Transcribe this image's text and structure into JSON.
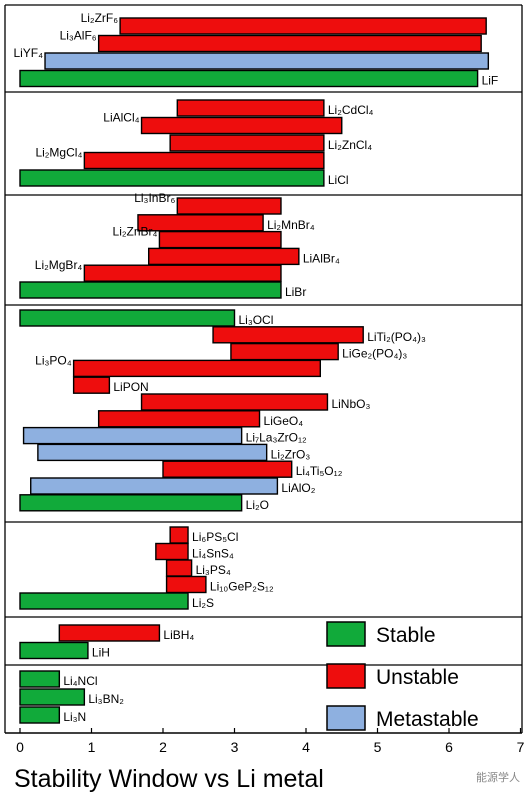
{
  "chart_data": {
    "type": "bar",
    "orientation": "horizontal-range",
    "title": "Stability Window vs Li metal",
    "xlabel": "",
    "ylabel": "",
    "xlim": [
      0,
      7
    ],
    "xticks": [
      0,
      1,
      2,
      3,
      4,
      5,
      6,
      7
    ],
    "grid": false,
    "legend_position": "bottom-right",
    "colors": {
      "Stable": "#11aa3a",
      "Unstable": "#ee0d0d",
      "Metastable": "#8eb0e0"
    },
    "legend": [
      "Stable",
      "Unstable",
      "Metastable"
    ],
    "groups": [
      {
        "materials": [
          {
            "name": "Li2ZrF6",
            "label": "Li₂ZrF₆",
            "start": 1.4,
            "end": 6.52,
            "status": "Unstable",
            "label_side": "left"
          },
          {
            "name": "Li3AlF6",
            "label": "Li₃AlF₆",
            "start": 1.1,
            "end": 6.45,
            "status": "Unstable",
            "label_side": "left"
          },
          {
            "name": "LiYF4",
            "label": "LiYF₄",
            "start": 0.35,
            "end": 6.55,
            "status": "Metastable",
            "label_side": "left"
          },
          {
            "name": "LiF",
            "label": "LiF",
            "start": 0,
            "end": 6.4,
            "status": "Stable",
            "label_side": "right"
          }
        ]
      },
      {
        "materials": [
          {
            "name": "Li2CdCl4",
            "label": "Li₂CdCl₄",
            "start": 2.2,
            "end": 4.25,
            "status": "Unstable",
            "label_side": "right"
          },
          {
            "name": "LiAlCl4",
            "label": "LiAlCl₄",
            "start": 1.7,
            "end": 4.5,
            "status": "Unstable",
            "label_side": "left"
          },
          {
            "name": "Li2ZnCl4",
            "label": "Li₂ZnCl₄",
            "start": 2.1,
            "end": 4.25,
            "status": "Unstable",
            "label_side": "right"
          },
          {
            "name": "Li2MgCl4",
            "label": "Li₂MgCl₄",
            "start": 0.9,
            "end": 4.25,
            "status": "Unstable",
            "label_side": "left"
          },
          {
            "name": "LiCl",
            "label": "LiCl",
            "start": 0,
            "end": 4.25,
            "status": "Stable",
            "label_side": "right"
          }
        ]
      },
      {
        "materials": [
          {
            "name": "Li3InBr6",
            "label": "Li₃InBr₆",
            "start": 2.2,
            "end": 3.65,
            "status": "Unstable",
            "label_side": "left"
          },
          {
            "name": "Li2MnBr4",
            "label": "Li₂MnBr₄",
            "start": 1.65,
            "end": 3.4,
            "status": "Unstable",
            "label_side": "right"
          },
          {
            "name": "Li2ZnBr4",
            "label": "Li₂ZnBr₄",
            "start": 1.95,
            "end": 3.65,
            "status": "Unstable",
            "label_side": "left"
          },
          {
            "name": "LiAlBr4",
            "label": "LiAlBr₄",
            "start": 1.8,
            "end": 3.9,
            "status": "Unstable",
            "label_side": "right"
          },
          {
            "name": "Li2MgBr4",
            "label": "Li₂MgBr₄",
            "start": 0.9,
            "end": 3.65,
            "status": "Unstable",
            "label_side": "left"
          },
          {
            "name": "LiBr",
            "label": "LiBr",
            "start": 0,
            "end": 3.65,
            "status": "Stable",
            "label_side": "right"
          }
        ]
      },
      {
        "materials": [
          {
            "name": "Li3OCl",
            "label": "Li₃OCl",
            "start": 0,
            "end": 3.0,
            "status": "Stable",
            "label_side": "right"
          },
          {
            "name": "LiTi2(PO4)3",
            "label": "LiTi₂(PO₄)₃",
            "start": 2.7,
            "end": 4.8,
            "status": "Unstable",
            "label_side": "right"
          },
          {
            "name": "LiGe2(PO4)3",
            "label": "LiGe₂(PO₄)₃",
            "start": 2.95,
            "end": 4.45,
            "status": "Unstable",
            "label_side": "right"
          },
          {
            "name": "Li3PO4",
            "label": "Li₃PO₄",
            "start": 0.75,
            "end": 4.2,
            "status": "Unstable",
            "label_side": "left"
          },
          {
            "name": "LiPON",
            "label": "LiPON",
            "start": 0.75,
            "end": 1.25,
            "status": "Unstable",
            "label_side": "right"
          },
          {
            "name": "LiNbO3",
            "label": "LiNbO₃",
            "start": 1.7,
            "end": 4.3,
            "status": "Unstable",
            "label_side": "right"
          },
          {
            "name": "LiGeO4",
            "label": "LiGeO₄",
            "start": 1.1,
            "end": 3.35,
            "status": "Unstable",
            "label_side": "right"
          },
          {
            "name": "Li7La3ZrO12",
            "label": "Li₇La₃ZrO₁₂",
            "start": 0.05,
            "end": 3.1,
            "status": "Metastable",
            "label_side": "right"
          },
          {
            "name": "Li2ZrO3",
            "label": "Li₂ZrO₃",
            "start": 0.25,
            "end": 3.45,
            "status": "Metastable",
            "label_side": "right"
          },
          {
            "name": "Li4Ti5O12",
            "label": "Li₄Ti₅O₁₂",
            "start": 2.0,
            "end": 3.8,
            "status": "Unstable",
            "label_side": "right"
          },
          {
            "name": "LiAlO2",
            "label": "LiAlO₂",
            "start": 0.15,
            "end": 3.6,
            "status": "Metastable",
            "label_side": "right"
          },
          {
            "name": "Li2O",
            "label": "Li₂O",
            "start": 0,
            "end": 3.1,
            "status": "Stable",
            "label_side": "right"
          }
        ]
      },
      {
        "materials": [
          {
            "name": "Li6PS5Cl",
            "label": "Li₆PS₅Cl",
            "start": 2.1,
            "end": 2.35,
            "status": "Unstable",
            "label_side": "right"
          },
          {
            "name": "Li4SnS4",
            "label": "Li₄SnS₄",
            "start": 1.9,
            "end": 2.35,
            "status": "Unstable",
            "label_side": "right"
          },
          {
            "name": "Li3PS4",
            "label": "Li₃PS₄",
            "start": 2.05,
            "end": 2.4,
            "status": "Unstable",
            "label_side": "right"
          },
          {
            "name": "Li10GeP2S12",
            "label": "Li₁₀GeP₂S₁₂",
            "start": 2.05,
            "end": 2.6,
            "status": "Unstable",
            "label_side": "right"
          },
          {
            "name": "Li2S",
            "label": "Li₂S",
            "start": 0,
            "end": 2.35,
            "status": "Stable",
            "label_side": "right"
          }
        ]
      },
      {
        "materials": [
          {
            "name": "LiBH4",
            "label": "LiBH₄",
            "start": 0.55,
            "end": 1.95,
            "status": "Unstable",
            "label_side": "right"
          },
          {
            "name": "LiH",
            "label": "LiH",
            "start": 0,
            "end": 0.95,
            "status": "Stable",
            "label_side": "right"
          }
        ]
      },
      {
        "materials": [
          {
            "name": "Li4NCl",
            "label": "Li₄NCl",
            "start": 0,
            "end": 0.55,
            "status": "Stable",
            "label_side": "right"
          },
          {
            "name": "Li3BN2",
            "label": "Li₃BN₂",
            "start": 0,
            "end": 0.9,
            "status": "Stable",
            "label_side": "right"
          },
          {
            "name": "Li3N",
            "label": "Li₃N",
            "start": 0,
            "end": 0.55,
            "status": "Stable",
            "label_side": "right"
          }
        ]
      }
    ]
  },
  "watermark": "能源学人"
}
